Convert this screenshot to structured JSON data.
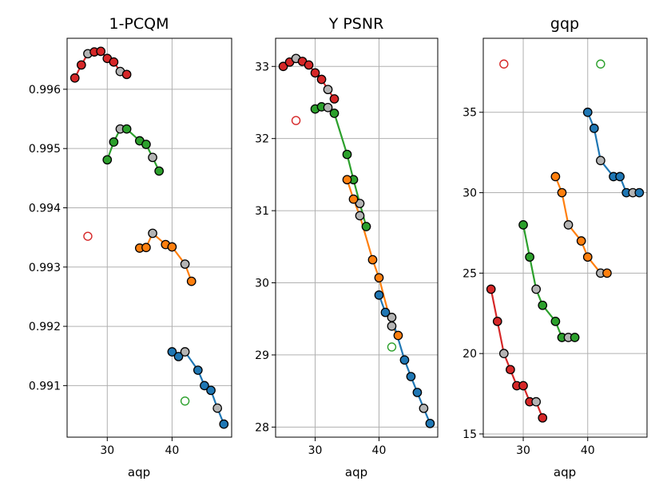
{
  "colors": {
    "blue": "#1f77b4",
    "orange": "#ff7f0e",
    "green": "#2ca02c",
    "red": "#d62728",
    "gray": "#b4b4b4",
    "grid": "#b0b0b0"
  },
  "chart_data": [
    {
      "type": "scatter",
      "title": "1-PCQM",
      "xlabel": "aqp",
      "ylabel": "",
      "xlim": [
        23.8,
        49.2
      ],
      "ylim": [
        0.99013,
        0.99686
      ],
      "xticks": [
        30,
        40
      ],
      "xtick_labels": [
        "30",
        "40"
      ],
      "yticks": [
        0.991,
        0.992,
        0.993,
        0.994,
        0.995,
        0.996
      ],
      "ytick_labels": [
        "0.991",
        "0.992",
        "0.993",
        "0.994",
        "0.995",
        "0.996"
      ],
      "grid": true,
      "series": [
        {
          "name": "red",
          "color": "red",
          "line": true,
          "points": [
            [
              25,
              0.99619,
              "red"
            ],
            [
              26,
              0.99641,
              "red"
            ],
            [
              27,
              0.9966,
              "gray"
            ],
            [
              28,
              0.99663,
              "red"
            ],
            [
              29,
              0.99664,
              "red"
            ],
            [
              30,
              0.99652,
              "red"
            ],
            [
              31,
              0.99646,
              "red"
            ],
            [
              32,
              0.9963,
              "gray"
            ],
            [
              33,
              0.99625,
              "red"
            ]
          ]
        },
        {
          "name": "green",
          "color": "green",
          "line": true,
          "points": [
            [
              30,
              0.99481,
              "green"
            ],
            [
              31,
              0.99511,
              "green"
            ],
            [
              32,
              0.99533,
              "gray"
            ],
            [
              33,
              0.99533,
              "green"
            ],
            [
              35,
              0.99513,
              "green"
            ],
            [
              36,
              0.99507,
              "green"
            ],
            [
              37,
              0.99485,
              "gray"
            ],
            [
              38,
              0.99462,
              "green"
            ]
          ]
        },
        {
          "name": "orange",
          "color": "orange",
          "line": true,
          "points": [
            [
              35,
              0.99332,
              "orange"
            ],
            [
              36,
              0.99333,
              "orange"
            ],
            [
              37,
              0.99357,
              "gray"
            ],
            [
              39,
              0.99338,
              "orange"
            ],
            [
              40,
              0.99334,
              "orange"
            ],
            [
              42,
              0.99305,
              "gray"
            ],
            [
              43,
              0.99276,
              "orange"
            ]
          ]
        },
        {
          "name": "blue",
          "color": "blue",
          "line": true,
          "points": [
            [
              40,
              0.99157,
              "blue"
            ],
            [
              41,
              0.99149,
              "blue"
            ],
            [
              42,
              0.99157,
              "gray"
            ],
            [
              44,
              0.99126,
              "blue"
            ],
            [
              45,
              0.991,
              "blue"
            ],
            [
              46,
              0.99092,
              "blue"
            ],
            [
              47,
              0.99062,
              "gray"
            ],
            [
              48,
              0.99035,
              "blue"
            ]
          ]
        },
        {
          "name": "red-open",
          "color": "red",
          "line": false,
          "open": true,
          "points": [
            [
              27,
              0.99352,
              "red"
            ]
          ]
        },
        {
          "name": "green-open",
          "color": "green",
          "line": false,
          "open": true,
          "points": [
            [
              42,
              0.99074,
              "green"
            ]
          ]
        }
      ]
    },
    {
      "type": "scatter",
      "title": "Y PSNR",
      "xlabel": "aqp",
      "ylabel": "",
      "xlim": [
        23.8,
        49.2
      ],
      "ylim": [
        27.86,
        33.39
      ],
      "xticks": [
        30,
        40
      ],
      "xtick_labels": [
        "30",
        "40"
      ],
      "yticks": [
        28,
        29,
        30,
        31,
        32,
        33
      ],
      "ytick_labels": [
        "28",
        "29",
        "30",
        "31",
        "32",
        "33"
      ],
      "grid": true,
      "series": [
        {
          "name": "red",
          "color": "red",
          "line": true,
          "points": [
            [
              25,
              33.0,
              "red"
            ],
            [
              26,
              33.06,
              "red"
            ],
            [
              27,
              33.11,
              "gray"
            ],
            [
              28,
              33.07,
              "red"
            ],
            [
              29,
              33.02,
              "red"
            ],
            [
              30,
              32.91,
              "red"
            ],
            [
              31,
              32.82,
              "red"
            ],
            [
              32,
              32.68,
              "gray"
            ],
            [
              33,
              32.55,
              "red"
            ]
          ]
        },
        {
          "name": "green",
          "color": "green",
          "line": true,
          "points": [
            [
              30,
              32.41,
              "green"
            ],
            [
              31,
              32.44,
              "green"
            ],
            [
              32,
              32.43,
              "gray"
            ],
            [
              33,
              32.35,
              "green"
            ],
            [
              35,
              31.78,
              "green"
            ],
            [
              36,
              31.43,
              "green"
            ],
            [
              37,
              31.1,
              "gray"
            ],
            [
              38,
              30.78,
              "green"
            ]
          ]
        },
        {
          "name": "orange",
          "color": "orange",
          "line": true,
          "points": [
            [
              35,
              31.43,
              "orange"
            ],
            [
              36,
              31.16,
              "orange"
            ],
            [
              37,
              30.93,
              "gray"
            ],
            [
              39,
              30.32,
              "orange"
            ],
            [
              40,
              30.07,
              "orange"
            ],
            [
              42,
              29.4,
              "gray"
            ],
            [
              43,
              29.27,
              "orange"
            ]
          ]
        },
        {
          "name": "blue",
          "color": "blue",
          "line": true,
          "points": [
            [
              40,
              29.83,
              "blue"
            ],
            [
              41,
              29.59,
              "blue"
            ],
            [
              42,
              29.52,
              "gray"
            ],
            [
              44,
              28.93,
              "blue"
            ],
            [
              45,
              28.7,
              "blue"
            ],
            [
              46,
              28.48,
              "blue"
            ],
            [
              47,
              28.26,
              "gray"
            ],
            [
              48,
              28.05,
              "blue"
            ]
          ]
        },
        {
          "name": "red-open",
          "color": "red",
          "line": false,
          "open": true,
          "points": [
            [
              27,
              32.25,
              "red"
            ]
          ]
        },
        {
          "name": "green-open",
          "color": "green",
          "line": false,
          "open": true,
          "points": [
            [
              42,
              29.11,
              "green"
            ]
          ]
        }
      ]
    },
    {
      "type": "scatter",
      "title": "gqp",
      "xlabel": "aqp",
      "ylabel": "",
      "xlim": [
        23.8,
        49.2
      ],
      "ylim": [
        14.8,
        39.6
      ],
      "xticks": [
        30,
        40
      ],
      "xtick_labels": [
        "30",
        "40"
      ],
      "yticks": [
        15,
        20,
        25,
        30,
        35
      ],
      "ytick_labels": [
        "15",
        "20",
        "25",
        "30",
        "35"
      ],
      "grid": true,
      "series": [
        {
          "name": "red",
          "color": "red",
          "line": true,
          "points": [
            [
              25,
              24,
              "red"
            ],
            [
              26,
              22,
              "red"
            ],
            [
              27,
              20,
              "gray"
            ],
            [
              28,
              19,
              "red"
            ],
            [
              29,
              18,
              "red"
            ],
            [
              30,
              18,
              "red"
            ],
            [
              31,
              17,
              "red"
            ],
            [
              32,
              17,
              "gray"
            ],
            [
              33,
              16,
              "red"
            ]
          ]
        },
        {
          "name": "green",
          "color": "green",
          "line": true,
          "points": [
            [
              30,
              28,
              "green"
            ],
            [
              31,
              26,
              "green"
            ],
            [
              32,
              24,
              "gray"
            ],
            [
              33,
              23,
              "green"
            ],
            [
              35,
              22,
              "green"
            ],
            [
              36,
              21,
              "green"
            ],
            [
              37,
              21,
              "gray"
            ],
            [
              38,
              21,
              "green"
            ]
          ]
        },
        {
          "name": "orange",
          "color": "orange",
          "line": true,
          "points": [
            [
              35,
              31,
              "orange"
            ],
            [
              36,
              30,
              "orange"
            ],
            [
              37,
              28,
              "gray"
            ],
            [
              39,
              27,
              "orange"
            ],
            [
              40,
              26,
              "orange"
            ],
            [
              42,
              25,
              "gray"
            ],
            [
              43,
              25,
              "orange"
            ]
          ]
        },
        {
          "name": "blue",
          "color": "blue",
          "line": true,
          "points": [
            [
              40,
              35,
              "blue"
            ],
            [
              41,
              34,
              "blue"
            ],
            [
              42,
              32,
              "gray"
            ],
            [
              44,
              31,
              "blue"
            ],
            [
              45,
              31,
              "blue"
            ],
            [
              46,
              30,
              "blue"
            ],
            [
              47,
              30,
              "gray"
            ],
            [
              48,
              30,
              "blue"
            ]
          ]
        },
        {
          "name": "red-open",
          "color": "red",
          "line": false,
          "open": true,
          "points": [
            [
              27,
              38,
              "red"
            ]
          ]
        },
        {
          "name": "green-open",
          "color": "green",
          "line": false,
          "open": true,
          "points": [
            [
              42,
              38,
              "green"
            ]
          ]
        }
      ]
    }
  ]
}
